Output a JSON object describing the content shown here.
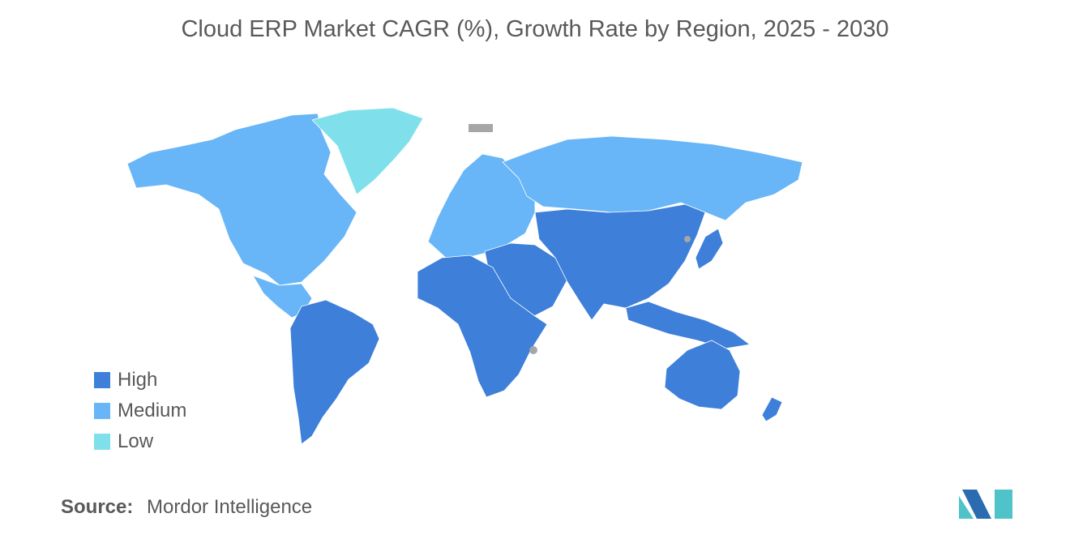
{
  "title": "Cloud ERP Market CAGR (%), Growth Rate by Region, 2025 - 2030",
  "legend": {
    "items": [
      {
        "label": "High",
        "color": "#3d7fd9"
      },
      {
        "label": "Medium",
        "color": "#68b6f7"
      },
      {
        "label": "Low",
        "color": "#7fe0ec"
      }
    ]
  },
  "no_data_color": "#a6a6a6",
  "regions": [
    {
      "name": "North America",
      "level": "Medium"
    },
    {
      "name": "Greenland",
      "level": "Low"
    },
    {
      "name": "Central America & Caribbean",
      "level": "Medium"
    },
    {
      "name": "South America",
      "level": "High"
    },
    {
      "name": "Europe",
      "level": "Medium"
    },
    {
      "name": "Russia",
      "level": "Medium"
    },
    {
      "name": "Africa",
      "level": "High"
    },
    {
      "name": "Middle East",
      "level": "High"
    },
    {
      "name": "Asia",
      "level": "High"
    },
    {
      "name": "Japan",
      "level": "High"
    },
    {
      "name": "Southeast Asia",
      "level": "High"
    },
    {
      "name": "Australia",
      "level": "High"
    },
    {
      "name": "New Zealand",
      "level": "High"
    }
  ],
  "source": {
    "label": "Source:",
    "value": "Mordor Intelligence"
  },
  "logo": {
    "colors": [
      "#2b6cb0",
      "#4fc3c9"
    ]
  }
}
